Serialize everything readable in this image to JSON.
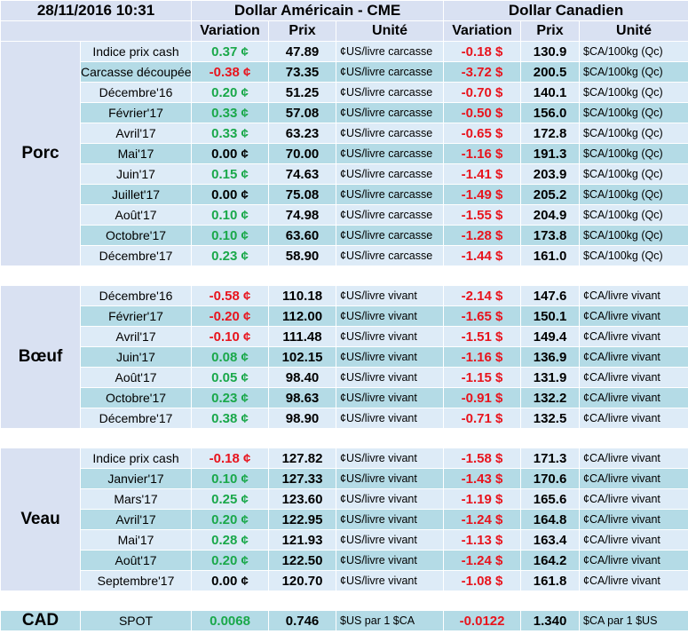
{
  "header": {
    "datetime": "28/11/2016 10:31",
    "usd_title": "Dollar Américain - CME",
    "cad_title": "Dollar Canadien",
    "col_variation": "Variation",
    "col_prix": "Prix",
    "col_unite": "Unité"
  },
  "groups": [
    {
      "name": "Porc",
      "rows": [
        {
          "label": "Indice prix cash",
          "var": "0.37 ¢",
          "vs": "pos",
          "prix": "47.89",
          "unit": "¢US/livre carcasse",
          "cvar": "-0.18 $",
          "cvs": "neg",
          "cprix": "130.9",
          "cunit": "$CA/100kg (Qc)"
        },
        {
          "label": "Carcasse découpée",
          "var": "-0.38 ¢",
          "vs": "neg",
          "prix": "73.35",
          "unit": "¢US/livre carcasse",
          "cvar": "-3.72 $",
          "cvs": "neg",
          "cprix": "200.5",
          "cunit": "$CA/100kg (Qc)"
        },
        {
          "label": "Décembre'16",
          "var": "0.20 ¢",
          "vs": "pos",
          "prix": "51.25",
          "unit": "¢US/livre carcasse",
          "cvar": "-0.70 $",
          "cvs": "neg",
          "cprix": "140.1",
          "cunit": "$CA/100kg (Qc)"
        },
        {
          "label": "Février'17",
          "var": "0.33 ¢",
          "vs": "pos",
          "prix": "57.08",
          "unit": "¢US/livre carcasse",
          "cvar": "-0.50 $",
          "cvs": "neg",
          "cprix": "156.0",
          "cunit": "$CA/100kg (Qc)"
        },
        {
          "label": "Avril'17",
          "var": "0.33 ¢",
          "vs": "pos",
          "prix": "63.23",
          "unit": "¢US/livre carcasse",
          "cvar": "-0.65 $",
          "cvs": "neg",
          "cprix": "172.8",
          "cunit": "$CA/100kg (Qc)"
        },
        {
          "label": "Mai'17",
          "var": "0.00 ¢",
          "vs": "zero",
          "prix": "70.00",
          "unit": "¢US/livre carcasse",
          "cvar": "-1.16 $",
          "cvs": "neg",
          "cprix": "191.3",
          "cunit": "$CA/100kg (Qc)"
        },
        {
          "label": "Juin'17",
          "var": "0.15 ¢",
          "vs": "pos",
          "prix": "74.63",
          "unit": "¢US/livre carcasse",
          "cvar": "-1.41 $",
          "cvs": "neg",
          "cprix": "203.9",
          "cunit": "$CA/100kg (Qc)"
        },
        {
          "label": "Juillet'17",
          "var": "0.00 ¢",
          "vs": "zero",
          "prix": "75.08",
          "unit": "¢US/livre carcasse",
          "cvar": "-1.49 $",
          "cvs": "neg",
          "cprix": "205.2",
          "cunit": "$CA/100kg (Qc)"
        },
        {
          "label": "Août'17",
          "var": "0.10 ¢",
          "vs": "pos",
          "prix": "74.98",
          "unit": "¢US/livre carcasse",
          "cvar": "-1.55 $",
          "cvs": "neg",
          "cprix": "204.9",
          "cunit": "$CA/100kg (Qc)"
        },
        {
          "label": "Octobre'17",
          "var": "0.10 ¢",
          "vs": "pos",
          "prix": "63.60",
          "unit": "¢US/livre carcasse",
          "cvar": "-1.28 $",
          "cvs": "neg",
          "cprix": "173.8",
          "cunit": "$CA/100kg (Qc)"
        },
        {
          "label": "Décembre'17",
          "var": "0.23 ¢",
          "vs": "pos",
          "prix": "58.90",
          "unit": "¢US/livre carcasse",
          "cvar": "-1.44 $",
          "cvs": "neg",
          "cprix": "161.0",
          "cunit": "$CA/100kg (Qc)"
        }
      ]
    },
    {
      "name": "Bœuf",
      "rows": [
        {
          "label": "Décembre'16",
          "var": "-0.58 ¢",
          "vs": "neg",
          "prix": "110.18",
          "unit": "¢US/livre vivant",
          "cvar": "-2.14 $",
          "cvs": "neg",
          "cprix": "147.6",
          "cunit": "¢CA/livre vivant"
        },
        {
          "label": "Février'17",
          "var": "-0.20 ¢",
          "vs": "neg",
          "prix": "112.00",
          "unit": "¢US/livre vivant",
          "cvar": "-1.65 $",
          "cvs": "neg",
          "cprix": "150.1",
          "cunit": "¢CA/livre vivant"
        },
        {
          "label": "Avril'17",
          "var": "-0.10 ¢",
          "vs": "neg",
          "prix": "111.48",
          "unit": "¢US/livre vivant",
          "cvar": "-1.51 $",
          "cvs": "neg",
          "cprix": "149.4",
          "cunit": "¢CA/livre vivant"
        },
        {
          "label": "Juin'17",
          "var": "0.08 ¢",
          "vs": "pos",
          "prix": "102.15",
          "unit": "¢US/livre vivant",
          "cvar": "-1.16 $",
          "cvs": "neg",
          "cprix": "136.9",
          "cunit": "¢CA/livre vivant"
        },
        {
          "label": "Août'17",
          "var": "0.05 ¢",
          "vs": "pos",
          "prix": "98.40",
          "unit": "¢US/livre vivant",
          "cvar": "-1.15 $",
          "cvs": "neg",
          "cprix": "131.9",
          "cunit": "¢CA/livre vivant"
        },
        {
          "label": "Octobre'17",
          "var": "0.23 ¢",
          "vs": "pos",
          "prix": "98.63",
          "unit": "¢US/livre vivant",
          "cvar": "-0.91 $",
          "cvs": "neg",
          "cprix": "132.2",
          "cunit": "¢CA/livre vivant"
        },
        {
          "label": "Décembre'17",
          "var": "0.38 ¢",
          "vs": "pos",
          "prix": "98.90",
          "unit": "¢US/livre vivant",
          "cvar": "-0.71 $",
          "cvs": "neg",
          "cprix": "132.5",
          "cunit": "¢CA/livre vivant"
        }
      ]
    },
    {
      "name": "Veau",
      "rows": [
        {
          "label": "Indice prix cash",
          "var": "-0.18 ¢",
          "vs": "neg",
          "prix": "127.82",
          "unit": "¢US/livre vivant",
          "cvar": "-1.58 $",
          "cvs": "neg",
          "cprix": "171.3",
          "cunit": "¢CA/livre vivant"
        },
        {
          "label": "Janvier'17",
          "var": "0.10 ¢",
          "vs": "pos",
          "prix": "127.33",
          "unit": "¢US/livre vivant",
          "cvar": "-1.43 $",
          "cvs": "neg",
          "cprix": "170.6",
          "cunit": "¢CA/livre vivant"
        },
        {
          "label": "Mars'17",
          "var": "0.25 ¢",
          "vs": "pos",
          "prix": "123.60",
          "unit": "¢US/livre vivant",
          "cvar": "-1.19 $",
          "cvs": "neg",
          "cprix": "165.6",
          "cunit": "¢CA/livre vivant"
        },
        {
          "label": "Avril'17",
          "var": "0.20 ¢",
          "vs": "pos",
          "prix": "122.95",
          "unit": "¢US/livre vivant",
          "cvar": "-1.24 $",
          "cvs": "neg",
          "cprix": "164.8",
          "cunit": "¢CA/livre vivant"
        },
        {
          "label": "Mai'17",
          "var": "0.28 ¢",
          "vs": "pos",
          "prix": "121.93",
          "unit": "¢US/livre vivant",
          "cvar": "-1.13 $",
          "cvs": "neg",
          "cprix": "163.4",
          "cunit": "¢CA/livre vivant"
        },
        {
          "label": "Août'17",
          "var": "0.20 ¢",
          "vs": "pos",
          "prix": "122.50",
          "unit": "¢US/livre vivant",
          "cvar": "-1.24 $",
          "cvs": "neg",
          "cprix": "164.2",
          "cunit": "¢CA/livre vivant"
        },
        {
          "label": "Septembre'17",
          "var": "0.00 ¢",
          "vs": "zero",
          "prix": "120.70",
          "unit": "¢US/livre vivant",
          "cvar": "-1.08 $",
          "cvs": "neg",
          "cprix": "161.8",
          "cunit": "¢CA/livre vivant"
        }
      ]
    }
  ],
  "cad": {
    "name": "CAD",
    "label": "SPOT",
    "var": "0.0068",
    "vs": "pos",
    "prix": "0.746",
    "unit": "$US par 1 $CA",
    "cvar": "-0.0122",
    "cvs": "neg",
    "cprix": "1.340",
    "cunit": "$CA par 1 $US"
  },
  "colors": {
    "positive": "#1aa84a",
    "negative": "#e8141d",
    "header_bg": "#d9e1f2",
    "row_light": "#ddebf7",
    "row_dark": "#b4dbe6"
  }
}
